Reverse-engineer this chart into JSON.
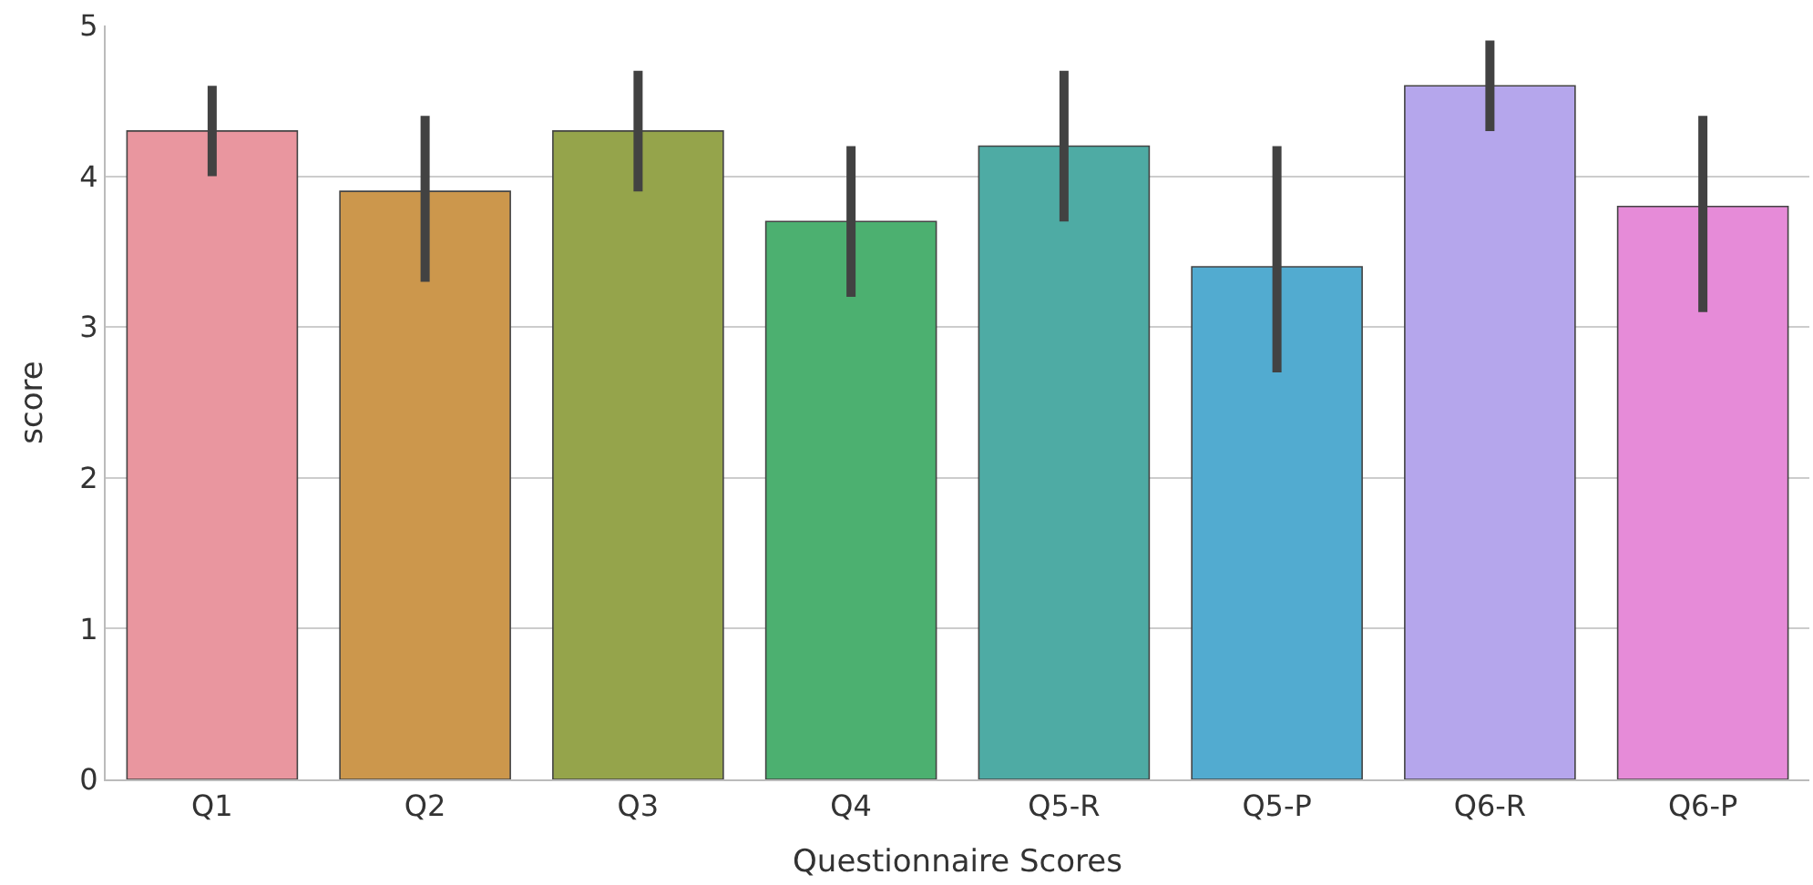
{
  "chart_data": {
    "type": "bar",
    "xlabel": "Questionnaire Scores",
    "ylabel": "score",
    "categories": [
      "Q1",
      "Q2",
      "Q3",
      "Q4",
      "Q5-R",
      "Q5-P",
      "Q6-R",
      "Q6-P"
    ],
    "values": [
      4.3,
      3.9,
      4.3,
      3.7,
      4.2,
      3.4,
      4.6,
      3.8
    ],
    "errors": [
      [
        4.0,
        4.6
      ],
      [
        3.3,
        4.4
      ],
      [
        3.9,
        4.7
      ],
      [
        3.2,
        4.2
      ],
      [
        3.7,
        4.7
      ],
      [
        2.7,
        4.2
      ],
      [
        4.3,
        4.9
      ],
      [
        3.1,
        4.4
      ]
    ],
    "colors": [
      "#e9969f",
      "#cc974c",
      "#95a44b",
      "#4cb070",
      "#4eaba4",
      "#52abd0",
      "#b5a6ec",
      "#e68bd8"
    ],
    "ylim": [
      0,
      5
    ],
    "yticks": [
      0,
      1,
      2,
      3,
      4,
      5
    ],
    "grid": "y"
  }
}
